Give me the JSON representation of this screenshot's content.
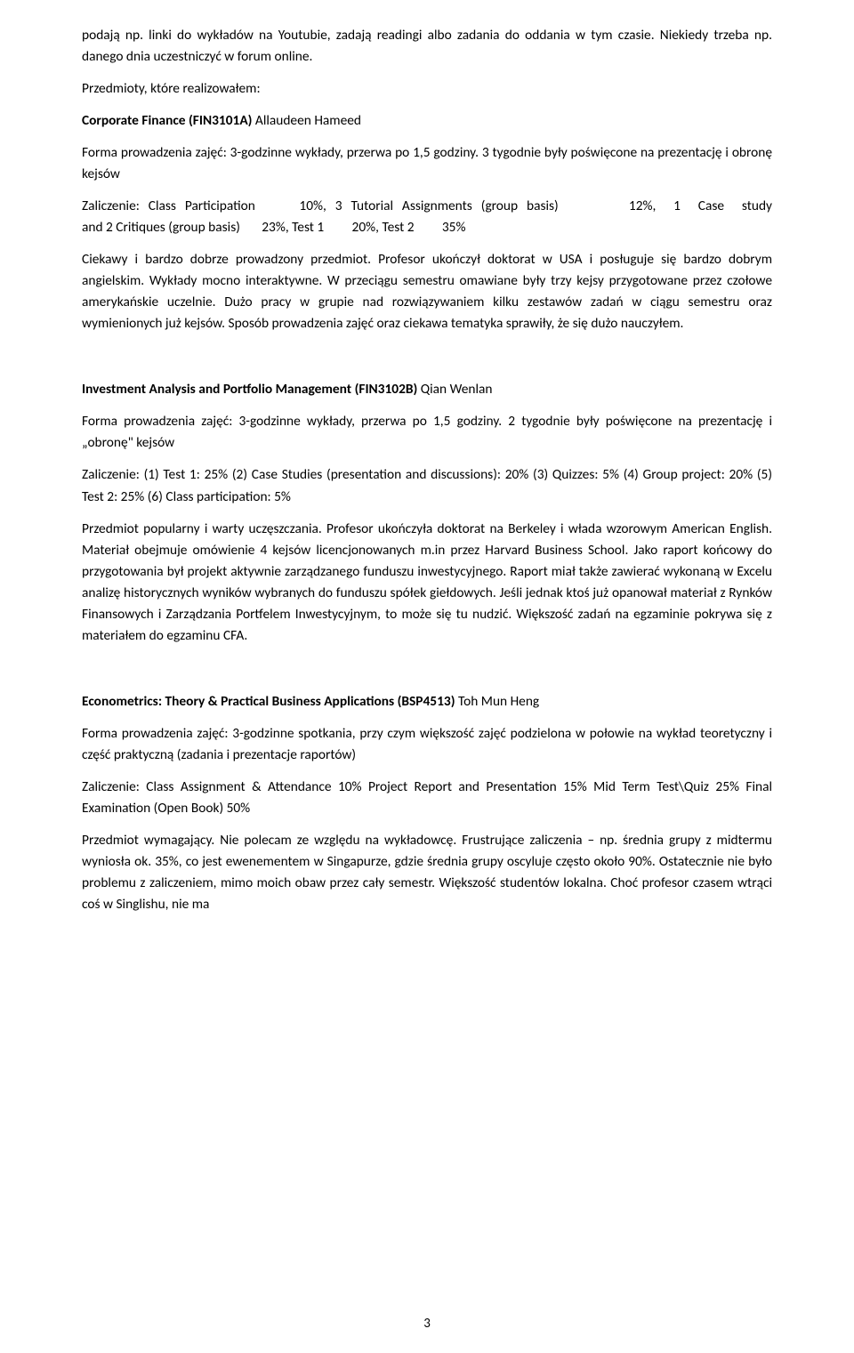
{
  "intro": {
    "p1": "podają np. linki do wykładów na Youtubie, zadają readingi albo zadania do oddania w tym czasie. Niekiedy trzeba np. danego dnia uczestniczyć w forum online.",
    "p2": "Przedmioty, które realizowałem:"
  },
  "course1": {
    "title_bold": "Corporate Finance (FIN3101A) ",
    "title_rest": "Allaudeen Hameed",
    "forma": "Forma prowadzenia zajęć: 3-godzinne wykłady, przerwa po 1,5 godziny. 3 tygodnie były poświęcone na prezentację i obronę kejsów",
    "zal_l1": "Zaliczenie: Class Participation     10%, 3 Tutorial Assignments (group basis)        12%,  1  Case  study",
    "zal_l2": "and 2 Critiques (group basis)       23%, Test 1         20%, Test 2         35%",
    "desc": "Ciekawy i bardzo dobrze prowadzony przedmiot. Profesor ukończył doktorat w USA i posługuje się bardzo dobrym angielskim. Wykłady mocno interaktywne. W przeciągu semestru omawiane były trzy kejsy przygotowane przez czołowe amerykańskie uczelnie. Dużo pracy w grupie nad rozwiązywaniem kilku zestawów zadań w ciągu semestru oraz wymienionych już kejsów. Sposób prowadzenia zajęć oraz ciekawa tematyka sprawiły, że się dużo nauczyłem."
  },
  "course2": {
    "title_bold": "Investment Analysis and Portfolio Management (FIN3102B) ",
    "title_rest": "Qian Wenlan",
    "forma": "Forma prowadzenia zajęć: 3-godzinne wykłady, przerwa po 1,5 godziny. 2 tygodnie były poświęcone na prezentację i „obronę\" kejsów",
    "zal": "Zaliczenie: (1) Test 1: 25% (2) Case Studies (presentation and discussions): 20%  (3) Quizzes: 5% (4) Group project: 20% (5) Test 2: 25%  (6) Class participation: 5%",
    "desc": "Przedmiot popularny i warty uczęszczania. Profesor ukończyła doktorat na Berkeley i włada wzorowym American English. Materiał obejmuje omówienie 4 kejsów licencjonowanych m.in przez Harvard Business School. Jako raport końcowy do przygotowania był projekt aktywnie zarządzanego funduszu inwestycyjnego. Raport miał także zawierać wykonaną w Excelu analizę historycznych wyników wybranych do funduszu spółek giełdowych. Jeśli jednak ktoś już opanował materiał z Rynków Finansowych i Zarządzania Portfelem Inwestycyjnym, to może się tu nudzić. Większość zadań na egzaminie pokrywa się z materiałem do egzaminu CFA."
  },
  "course3": {
    "title_bold": "Econometrics: Theory & Practical Business Applications (BSP4513) ",
    "title_rest": "Toh Mun Heng",
    "forma": "Forma prowadzenia zajęć: 3-godzinne spotkania, przy czym większość zajęć podzielona w połowie na wykład teoretyczny i część praktyczną (zadania i prezentacje raportów)",
    "zal": "Zaliczenie: Class Assignment & Attendance 10% Project Report and Presentation 15% Mid Term Test\\Quiz 25% Final Examination (Open Book) 50%",
    "desc": "Przedmiot wymagający. Nie polecam ze względu na wykładowcę.  Frustrujące zaliczenia – np. średnia grupy z midtermu wyniosła ok. 35%, co jest ewenementem w Singapurze, gdzie średnia grupy oscyluje często około 90%. Ostatecznie nie było problemu z zaliczeniem, mimo moich obaw przez cały semestr. Większość studentów lokalna. Choć profesor czasem wtrąci coś w Singlishu, nie ma"
  },
  "pagenum": "3"
}
